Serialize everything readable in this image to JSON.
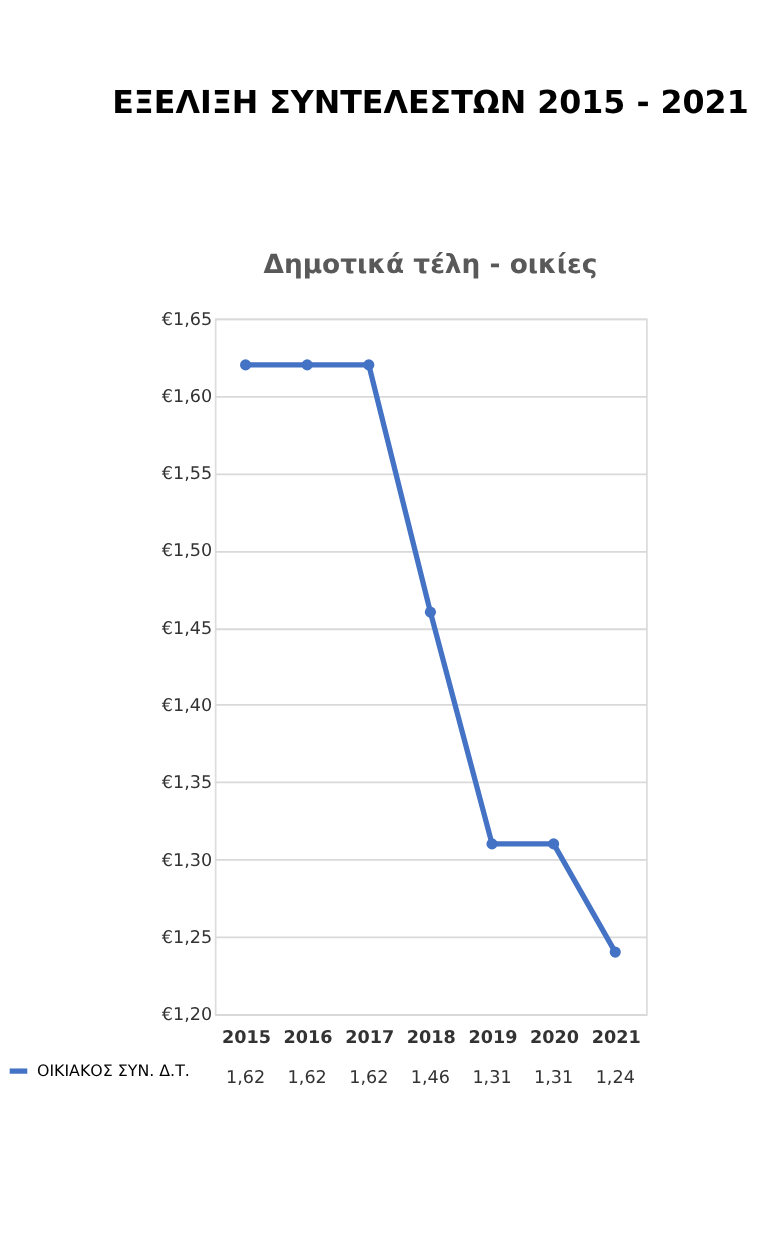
{
  "chart_data": {
    "type": "line",
    "title": "ΕΞΕΛΙΞΗ ΣΥΝΤΕΛΕΣΤΩΝ 2015 - 2021",
    "subtitle": "Δημοτικά τέλη - οικίες",
    "categories": [
      "2015",
      "2016",
      "2017",
      "2018",
      "2019",
      "2020",
      "2021"
    ],
    "series": [
      {
        "name": "ΟΙΚΙΑΚΟΣ ΣΥΝ. Δ.Τ.",
        "color": "#4472c4",
        "values": [
          1.62,
          1.62,
          1.62,
          1.46,
          1.31,
          1.31,
          1.24
        ],
        "value_labels": [
          "1,62",
          "1,62",
          "1,62",
          "1,46",
          "1,31",
          "1,31",
          "1,24"
        ]
      }
    ],
    "ylim": [
      1.2,
      1.65
    ],
    "yticks": [
      {
        "value": 1.2,
        "label": "€1,20"
      },
      {
        "value": 1.25,
        "label": "€1,25"
      },
      {
        "value": 1.3,
        "label": "€1,30"
      },
      {
        "value": 1.35,
        "label": "€1,35"
      },
      {
        "value": 1.4,
        "label": "€1,40"
      },
      {
        "value": 1.45,
        "label": "€1,45"
      },
      {
        "value": 1.5,
        "label": "€1,50"
      },
      {
        "value": 1.55,
        "label": "€1,55"
      },
      {
        "value": 1.6,
        "label": "€1,60"
      },
      {
        "value": 1.65,
        "label": "€1,65"
      }
    ],
    "grid": "y",
    "marker": "circle",
    "line_style": "solid",
    "legend": "bottom left"
  }
}
